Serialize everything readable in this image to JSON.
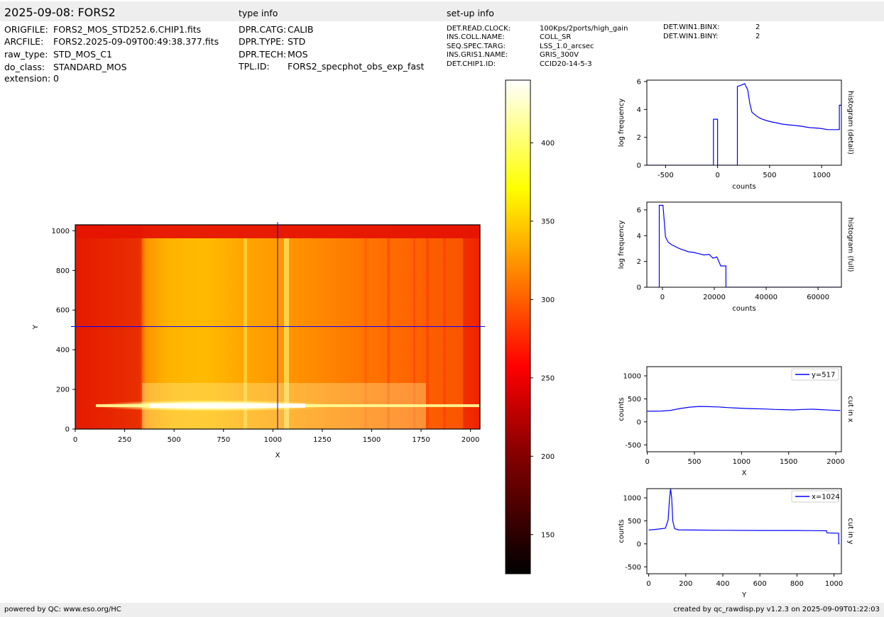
{
  "header": {
    "title": "2025-09-08: FORS2",
    "type_info_label": "type info",
    "setup_info_label": "set-up info"
  },
  "file_info": [
    {
      "key": "ORIGFILE:",
      "value": "FORS2_MOS_STD252.6.CHIP1.fits"
    },
    {
      "key": "ARCFILE:",
      "value": "FORS2.2025-09-09T00:49:38.377.fits"
    },
    {
      "key": "raw_type:",
      "value": "STD_MOS_C1"
    },
    {
      "key": "do_class:",
      "value": "STANDARD_MOS"
    },
    {
      "key": "extension:",
      "value": "0"
    }
  ],
  "type_info": [
    {
      "key": "DPR.CATG:",
      "value": "CALIB"
    },
    {
      "key": "DPR.TYPE:",
      "value": "STD"
    },
    {
      "key": "DPR.TECH:",
      "value": "MOS"
    },
    {
      "key": "TPL.ID:",
      "value": "FORS2_specphot_obs_exp_fast"
    }
  ],
  "setup_info": [
    {
      "key": "DET.READ.CLOCK:",
      "value": "100Kps/2ports/high_gain"
    },
    {
      "key": "INS.COLL.NAME:",
      "value": "COLL_SR"
    },
    {
      "key": "SEQ.SPEC.TARG:",
      "value": "LSS_1.0_arcsec"
    },
    {
      "key": "INS.GRIS1.NAME:",
      "value": "GRIS_300V"
    },
    {
      "key": "DET.CHIP1.ID:",
      "value": "CCID20-14-5-3"
    }
  ],
  "setup_info2": [
    {
      "key": "DET.WIN1.BINX:",
      "value": "2"
    },
    {
      "key": "DET.WIN1.BINY:",
      "value": "2"
    }
  ],
  "footer": {
    "left": "powered by QC: www.eso.org/HC",
    "right": "created by qc_rawdisp.py v1.2.3 on 2025-09-09T01:22:03"
  },
  "colors": {
    "line": "#0000ff",
    "header_bg": "#eeeeee",
    "colormap": [
      "#000000",
      "#8b0000",
      "#ff0000",
      "#ff7f00",
      "#ffff00",
      "#ffffff"
    ]
  },
  "chart_data": [
    {
      "id": "image",
      "type": "heatmap",
      "xlabel": "X",
      "ylabel": "Y",
      "xlim": [
        0,
        2048
      ],
      "ylim": [
        0,
        1030
      ],
      "xticks": [
        0,
        250,
        500,
        750,
        1000,
        1250,
        1500,
        1750,
        2000
      ],
      "yticks": [
        0,
        200,
        400,
        600,
        800,
        1000
      ],
      "crosshair": {
        "x": 1024,
        "y": 517
      },
      "colorbar": {
        "range": [
          125,
          440
        ],
        "ticks": [
          150,
          200,
          250,
          300,
          350,
          400
        ]
      }
    },
    {
      "id": "hist_detail",
      "type": "line",
      "xlabel": "counts",
      "ylabel": "log frequency",
      "side_label": "histogram (detail)",
      "xlim": [
        -680,
        1190
      ],
      "ylim": [
        0,
        6.1
      ],
      "xticks": [
        -500,
        0,
        500,
        1000
      ],
      "yticks": [
        0,
        2,
        4,
        6
      ],
      "series": [
        {
          "x": [
            -680,
            -40,
            -40,
            0,
            0,
            190,
            190,
            210,
            230,
            260,
            290,
            310,
            330,
            370,
            400,
            430,
            470,
            520,
            560,
            620,
            680,
            740,
            800,
            880,
            980,
            1060,
            1170,
            1170,
            1190
          ],
          "y": [
            0,
            0,
            3.3,
            3.3,
            0,
            0,
            5.65,
            5.7,
            5.75,
            5.85,
            5.4,
            4.4,
            3.8,
            3.55,
            3.4,
            3.3,
            3.2,
            3.1,
            3.05,
            2.95,
            2.9,
            2.85,
            2.8,
            2.7,
            2.65,
            2.55,
            2.55,
            4.3,
            4.3
          ]
        }
      ]
    },
    {
      "id": "hist_full",
      "type": "line",
      "xlabel": "counts",
      "ylabel": "log frequency",
      "side_label": "histogram (full)",
      "xlim": [
        -6000,
        69000
      ],
      "ylim": [
        0,
        6.6
      ],
      "xticks": [
        0,
        20000,
        40000,
        60000
      ],
      "yticks": [
        0,
        2,
        4,
        6
      ],
      "series": [
        {
          "x": [
            -1200,
            -1200,
            200,
            1200,
            2200,
            3500,
            5000,
            6500,
            8000,
            10000,
            12000,
            14000,
            16000,
            18000,
            19500,
            21000,
            22500,
            24500,
            24500,
            69000
          ],
          "y": [
            0,
            6.35,
            6.35,
            3.9,
            3.5,
            3.3,
            3.15,
            3.0,
            2.9,
            2.75,
            2.7,
            2.6,
            2.5,
            2.55,
            2.25,
            2.35,
            1.65,
            1.65,
            0,
            0
          ]
        }
      ]
    },
    {
      "id": "cut_x",
      "type": "line",
      "xlabel": "X",
      "ylabel": "counts",
      "side_label": "cut in x",
      "legend": "y=517",
      "legend_position": "upper right",
      "xlim": [
        -5,
        2060
      ],
      "ylim": [
        -650,
        1200
      ],
      "xticks": [
        0,
        500,
        1000,
        1500,
        2000
      ],
      "yticks": [
        -500,
        0,
        500,
        1000
      ],
      "series": [
        {
          "name": "y=517",
          "x": [
            0,
            150,
            250,
            350,
            450,
            550,
            650,
            750,
            850,
            950,
            1050,
            1150,
            1250,
            1350,
            1450,
            1550,
            1650,
            1750,
            1850,
            1950,
            2048
          ],
          "y": [
            230,
            235,
            250,
            290,
            320,
            335,
            330,
            325,
            310,
            300,
            290,
            285,
            280,
            270,
            265,
            260,
            270,
            275,
            265,
            255,
            245
          ]
        }
      ]
    },
    {
      "id": "cut_y",
      "type": "line",
      "xlabel": "Y",
      "ylabel": "counts",
      "side_label": "cut in y",
      "legend": "x=1024",
      "legend_position": "upper right",
      "xlim": [
        -10,
        1040
      ],
      "ylim": [
        -650,
        1200
      ],
      "xticks": [
        0,
        200,
        400,
        600,
        800,
        1000
      ],
      "yticks": [
        -500,
        0,
        500,
        1000
      ],
      "series": [
        {
          "name": "x=1024",
          "x": [
            0,
            50,
            90,
            105,
            112,
            118,
            124,
            130,
            140,
            160,
            250,
            400,
            600,
            800,
            960,
            962,
            1025,
            1026,
            1030
          ],
          "y": [
            300,
            320,
            340,
            520,
            950,
            1200,
            1000,
            500,
            330,
            305,
            300,
            295,
            290,
            290,
            285,
            240,
            230,
            0,
            0
          ]
        }
      ]
    }
  ]
}
